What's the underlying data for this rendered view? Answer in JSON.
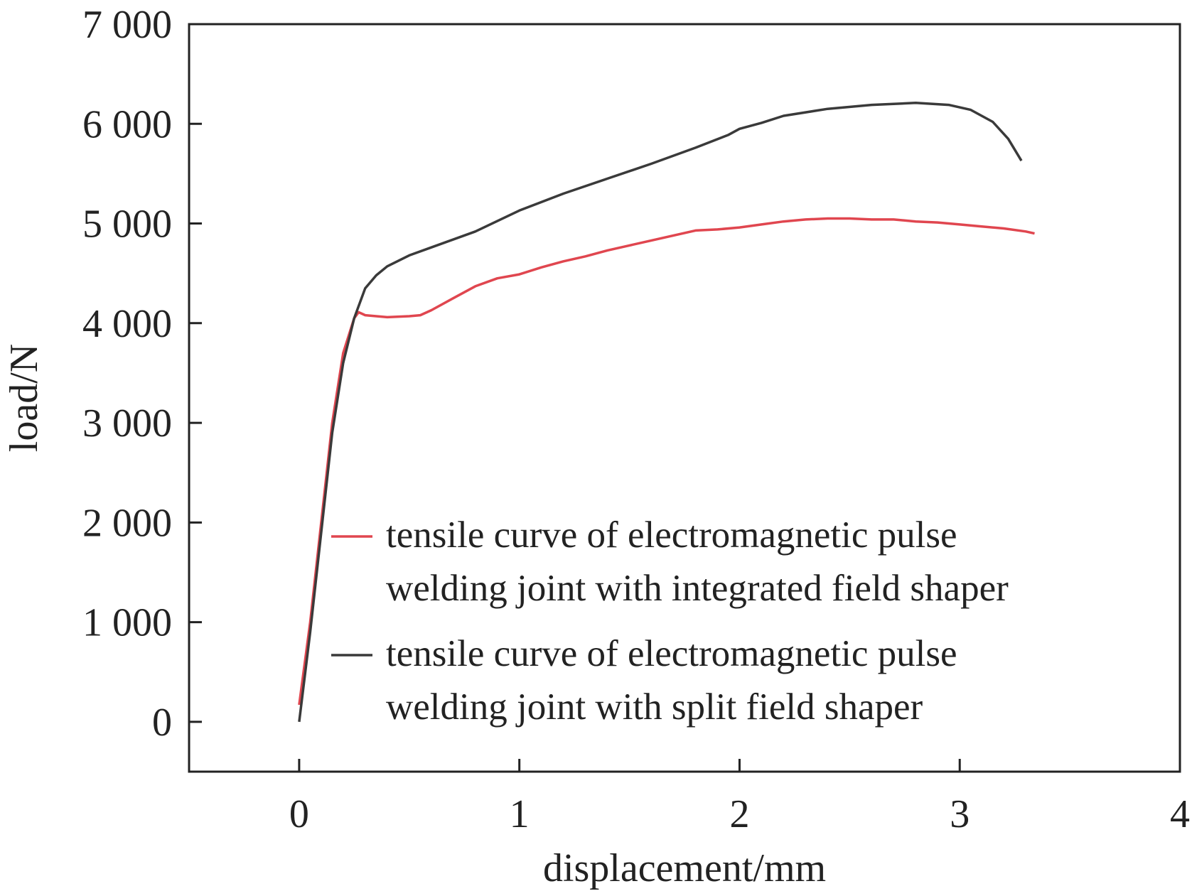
{
  "chart_data": {
    "type": "line",
    "title": "",
    "xlabel": "displacement/mm",
    "ylabel": "load/N",
    "xlim": [
      -0.5,
      4
    ],
    "ylim": [
      -500,
      7000
    ],
    "xticks": [
      0,
      1,
      2,
      3,
      4
    ],
    "xtick_labels": [
      "0",
      "1",
      "2",
      "3",
      "4"
    ],
    "yticks": [
      0,
      1000,
      2000,
      3000,
      4000,
      5000,
      6000,
      7000
    ],
    "ytick_labels": [
      "0",
      "1 000",
      "2 000",
      "3 000",
      "4 000",
      "5 000",
      "6 000",
      "7 000"
    ],
    "grid": false,
    "legend_placement": "bottom-right",
    "series": [
      {
        "name": "tensile curve of electromagnetic pulse welding joint with integrated field shaper",
        "legend_lines": [
          "tensile curve of electromagnetic pulse",
          "welding joint with integrated field shaper"
        ],
        "color": "#e0464f",
        "x": [
          0,
          0.05,
          0.1,
          0.15,
          0.2,
          0.25,
          0.27,
          0.3,
          0.4,
          0.5,
          0.55,
          0.6,
          0.7,
          0.8,
          0.9,
          1.0,
          1.1,
          1.2,
          1.3,
          1.4,
          1.5,
          1.6,
          1.7,
          1.8,
          1.9,
          2.0,
          2.1,
          2.2,
          2.3,
          2.4,
          2.5,
          2.6,
          2.7,
          2.8,
          2.9,
          3.0,
          3.1,
          3.2,
          3.3,
          3.34
        ],
        "y": [
          170,
          1000,
          2000,
          3000,
          3700,
          4050,
          4110,
          4080,
          4060,
          4070,
          4080,
          4130,
          4250,
          4370,
          4450,
          4490,
          4560,
          4620,
          4670,
          4730,
          4780,
          4830,
          4880,
          4930,
          4940,
          4960,
          4990,
          5020,
          5040,
          5050,
          5050,
          5040,
          5040,
          5020,
          5010,
          4990,
          4970,
          4950,
          4920,
          4900
        ]
      },
      {
        "name": "tensile curve of electromagnetic pulse welding joint with split field shaper",
        "legend_lines": [
          "tensile curve of electromagnetic pulse",
          "welding joint with split field shaper"
        ],
        "color": "#3a3a3a",
        "x": [
          0,
          0.05,
          0.1,
          0.15,
          0.2,
          0.25,
          0.3,
          0.35,
          0.4,
          0.5,
          0.6,
          0.8,
          1.0,
          1.2,
          1.4,
          1.6,
          1.8,
          1.95,
          2.0,
          2.1,
          2.2,
          2.4,
          2.6,
          2.8,
          2.95,
          3.05,
          3.15,
          3.22,
          3.28
        ],
        "y": [
          0,
          900,
          1900,
          2900,
          3600,
          4050,
          4350,
          4480,
          4570,
          4680,
          4760,
          4920,
          5130,
          5300,
          5450,
          5600,
          5760,
          5890,
          5950,
          6010,
          6080,
          6150,
          6190,
          6210,
          6190,
          6140,
          6020,
          5850,
          5630
        ]
      }
    ]
  }
}
